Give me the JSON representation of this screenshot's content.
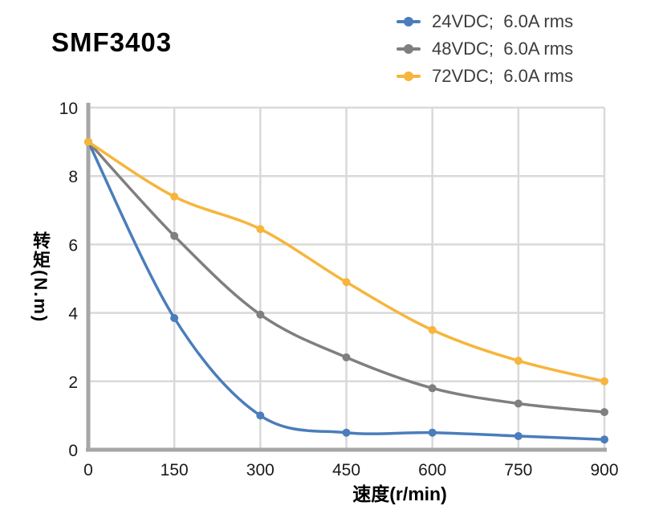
{
  "title": "SMF3403",
  "chart_data": {
    "type": "line",
    "x": [
      0,
      150,
      300,
      450,
      600,
      750,
      900
    ],
    "series": [
      {
        "name": "24VDC;  6.0A rms",
        "color": "#4A7DBB",
        "values": [
          9.0,
          3.85,
          1.0,
          0.5,
          0.5,
          0.4,
          0.3
        ]
      },
      {
        "name": "48VDC;  6.0A rms",
        "color": "#7F7F7F",
        "values": [
          9.0,
          6.25,
          3.95,
          2.7,
          1.8,
          1.35,
          1.1
        ]
      },
      {
        "name": "72VDC;  6.0A rms",
        "color": "#F7B53C",
        "values": [
          9.0,
          7.4,
          6.45,
          4.9,
          3.5,
          2.6,
          2.0
        ]
      }
    ],
    "xlabel": "速度(r/min)",
    "ylabel": "转矩(N.m)",
    "xlim": [
      0,
      900
    ],
    "ylim": [
      0,
      10
    ],
    "x_ticks": [
      0,
      150,
      300,
      450,
      600,
      750,
      900
    ],
    "y_ticks": [
      0,
      2,
      4,
      6,
      8,
      10
    ],
    "grid": true,
    "legend_position": "top-right",
    "line_style": "smooth",
    "markers": "circle"
  },
  "colors": {
    "grid": "#D9D9D9",
    "axis": "#A6A6A6",
    "tick_text": "#1A1A1A",
    "legend_text": "#3D3D3D",
    "title_text": "#000000"
  }
}
